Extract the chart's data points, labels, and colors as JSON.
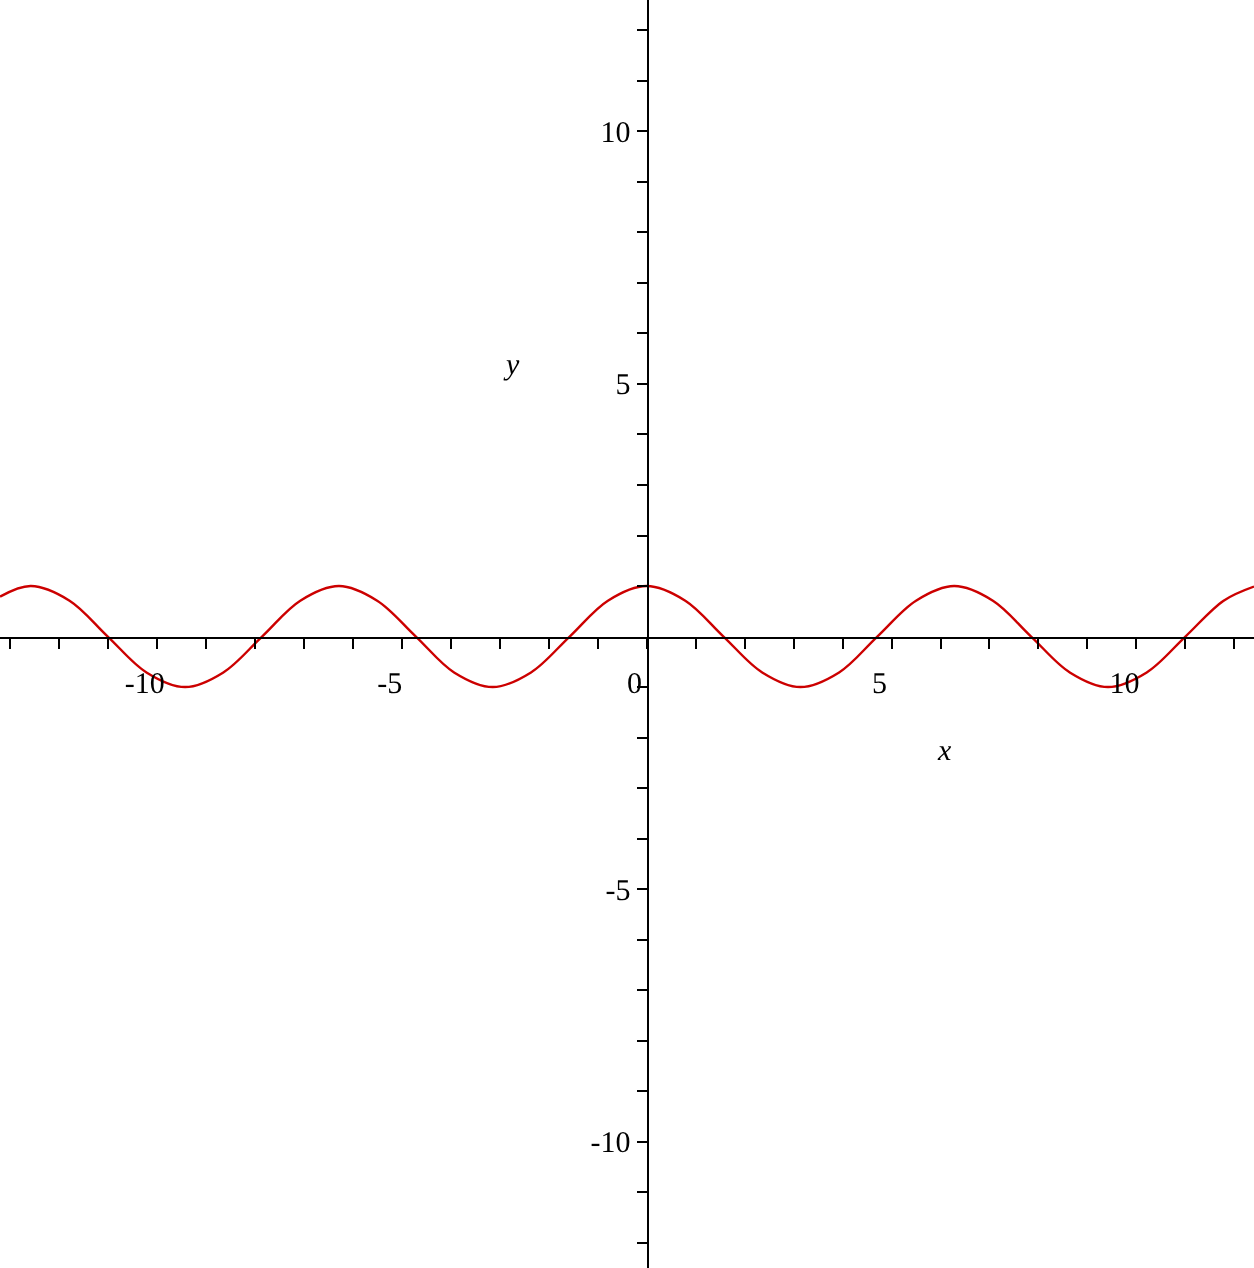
{
  "chart_data": {
    "type": "line",
    "xlabel": "x",
    "ylabel": "y",
    "x": [
      -13.2,
      -12.57,
      -11.78,
      -11.0,
      -10.21,
      -9.42,
      -8.64,
      -7.85,
      -7.07,
      -6.28,
      -5.5,
      -4.71,
      -3.93,
      -3.14,
      -2.36,
      -1.57,
      -0.79,
      0,
      0.79,
      1.57,
      2.36,
      3.14,
      3.93,
      4.71,
      5.5,
      6.28,
      7.07,
      7.85,
      8.64,
      9.42,
      10.21,
      11.0,
      11.78,
      12.4
    ],
    "series": [
      {
        "color": "#cc0000",
        "values": [
          0.79,
          1,
          0.71,
          0,
          -0.71,
          -1,
          -0.71,
          0,
          0.71,
          1,
          0.71,
          0,
          -0.71,
          -1,
          -0.71,
          0,
          0.71,
          1,
          0.71,
          0,
          -0.71,
          -1,
          -0.71,
          0,
          0.71,
          1,
          0.71,
          0,
          -0.71,
          -1,
          -0.71,
          0,
          0.71,
          0.99
        ]
      }
    ],
    "xlim": [
      -13.2,
      12.4
    ],
    "ylim": [
      -12.5,
      12.6
    ],
    "xticks": [
      {
        "value": -13,
        "label": null
      },
      {
        "value": -12,
        "label": null
      },
      {
        "value": -11,
        "label": null
      },
      -10,
      {
        "value": -9,
        "label": null
      },
      {
        "value": -8,
        "label": null
      },
      {
        "value": -7,
        "label": null
      },
      {
        "value": -6,
        "label": null
      },
      -5,
      {
        "value": -4,
        "label": null
      },
      {
        "value": -3,
        "label": null
      },
      {
        "value": -2,
        "label": null
      },
      {
        "value": -1,
        "label": null
      },
      0,
      {
        "value": 1,
        "label": null
      },
      {
        "value": 2,
        "label": null
      },
      {
        "value": 3,
        "label": null
      },
      {
        "value": 4,
        "label": null
      },
      5,
      {
        "value": 6,
        "label": null
      },
      {
        "value": 7,
        "label": null
      },
      {
        "value": 8,
        "label": null
      },
      {
        "value": 9,
        "label": null
      },
      10,
      {
        "value": 11,
        "label": null
      },
      {
        "value": 12,
        "label": null
      }
    ],
    "yticks": [
      {
        "value": -12,
        "label": null
      },
      {
        "value": -11,
        "label": null
      },
      -10,
      {
        "value": -9,
        "label": null
      },
      {
        "value": -8,
        "label": null
      },
      {
        "value": -7,
        "label": null
      },
      {
        "value": -6,
        "label": null
      },
      -5,
      {
        "value": -4,
        "label": null
      },
      {
        "value": -3,
        "label": null
      },
      {
        "value": -2,
        "label": null
      },
      {
        "value": -1,
        "label": null
      },
      {
        "value": 1,
        "label": null
      },
      {
        "value": 2,
        "label": null
      },
      {
        "value": 3,
        "label": null
      },
      {
        "value": 4,
        "label": null
      },
      5,
      {
        "value": 6,
        "label": null
      },
      {
        "value": 7,
        "label": null
      },
      {
        "value": 8,
        "label": null
      },
      {
        "value": 9,
        "label": null
      },
      10,
      {
        "value": 11,
        "label": null
      },
      {
        "value": 12,
        "label": null
      }
    ],
    "legend": false,
    "marker": "none",
    "line_style": "solid"
  }
}
